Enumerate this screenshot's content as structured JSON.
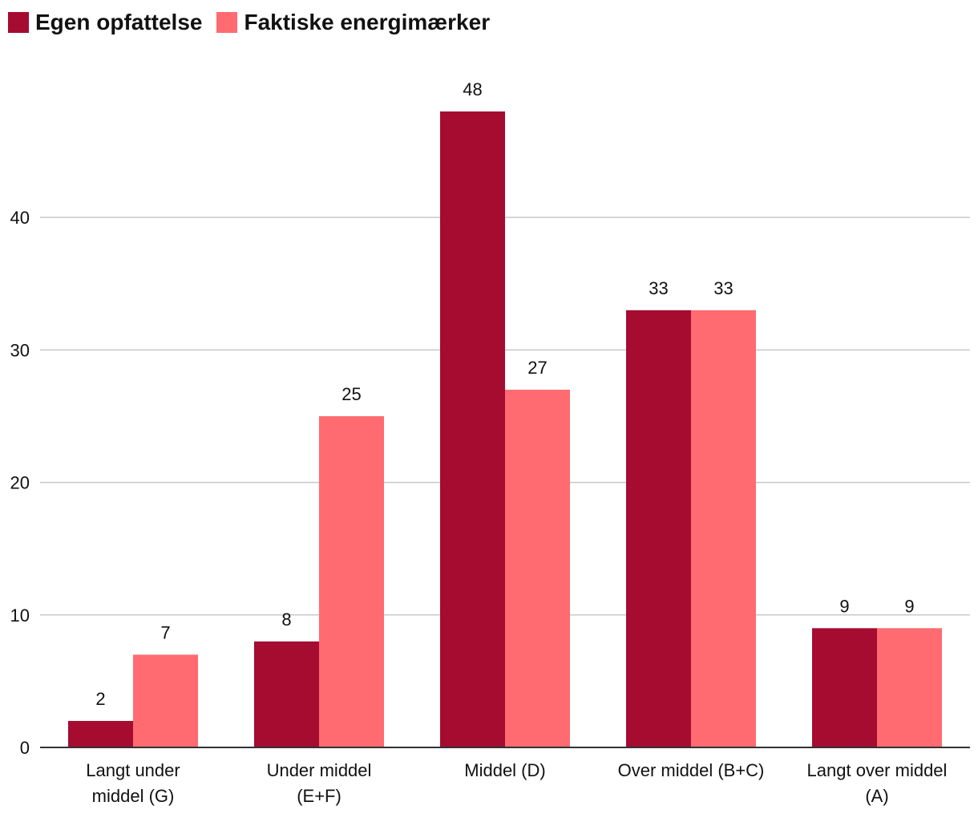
{
  "chart_data": {
    "type": "bar",
    "title": "",
    "xlabel": "",
    "ylabel": "",
    "categories": [
      [
        "Langt under",
        "middel (G)"
      ],
      [
        "Under middel",
        "(E+F)"
      ],
      [
        "Middel (D)"
      ],
      [
        "Over middel (B+C)"
      ],
      [
        "Langt over middel",
        "(A)"
      ]
    ],
    "series": [
      {
        "name": "Egen opfattelse",
        "color": "#a50c30",
        "values": [
          2,
          8,
          48,
          33,
          9
        ]
      },
      {
        "name": "Faktiske energimærker",
        "color": "#ff6b70",
        "values": [
          7,
          25,
          27,
          33,
          9
        ]
      }
    ],
    "ylim": [
      0,
      50
    ],
    "yticks": [
      0,
      10,
      20,
      30,
      40
    ],
    "grid": true,
    "legend_position": "top-left"
  }
}
